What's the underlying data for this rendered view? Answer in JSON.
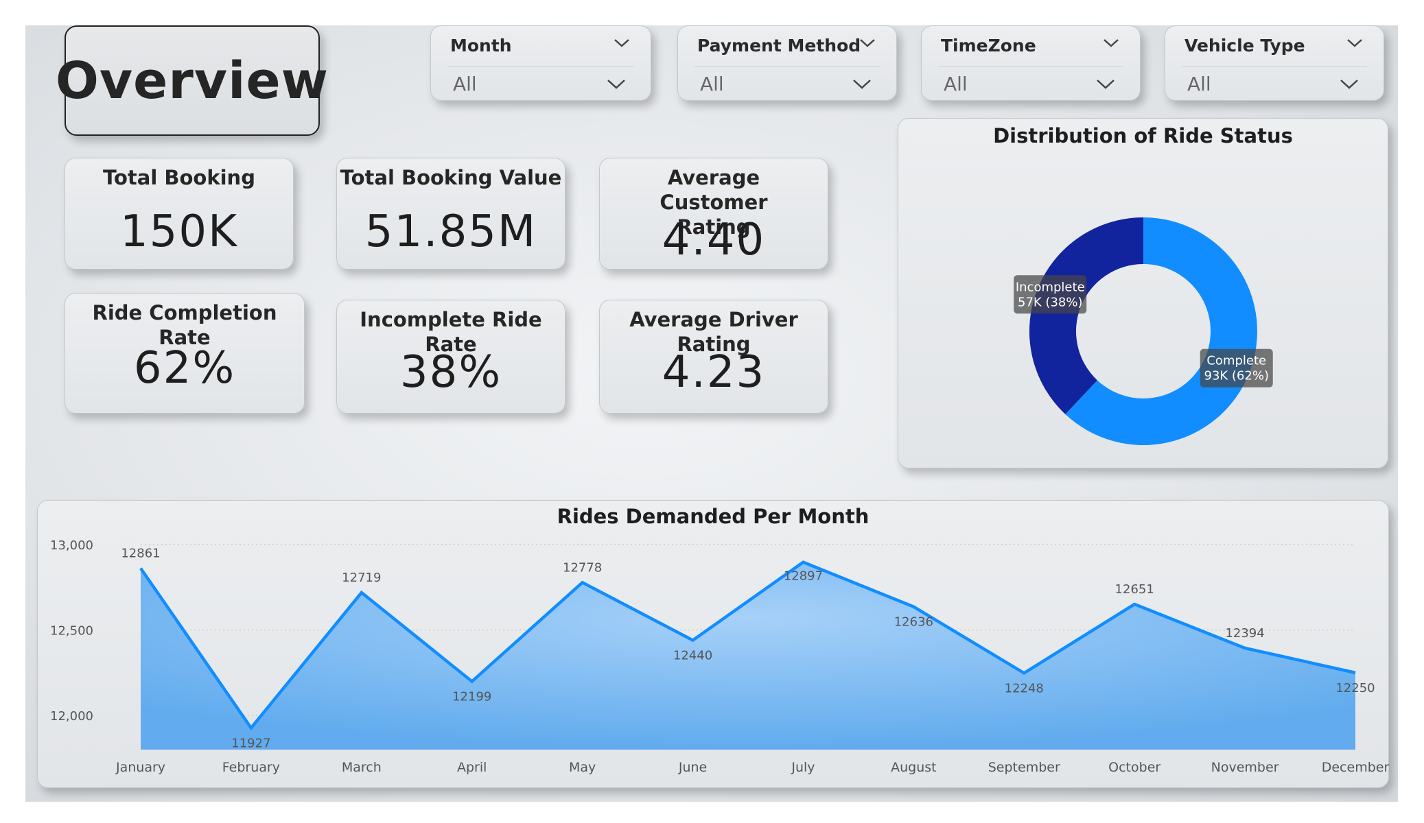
{
  "title": "Overview",
  "slicers": [
    {
      "label": "Month",
      "value": "All"
    },
    {
      "label": "Payment Method",
      "value": "All"
    },
    {
      "label": "TimeZone",
      "value": "All"
    },
    {
      "label": "Vehicle Type",
      "value": "All"
    }
  ],
  "kpis": {
    "total_booking": {
      "label": "Total Booking",
      "value": "150K"
    },
    "total_booking_value": {
      "label": "Total Booking Value",
      "value": "51.85M"
    },
    "avg_customer_rating": {
      "label": "Average Customer Rating",
      "value": "4.40"
    },
    "ride_completion_rate": {
      "label": "Ride Completion Rate",
      "value": "62%"
    },
    "incomplete_ride_rate": {
      "label": "Incomplete Ride Rate",
      "value": "38%"
    },
    "avg_driver_rating": {
      "label": "Average Driver Rating",
      "value": "4.23"
    }
  },
  "chart_data": [
    {
      "type": "pie",
      "title": "Distribution of Ride Status",
      "donut": true,
      "slices": [
        {
          "name": "Complete",
          "value": 93,
          "label_line1": "Complete",
          "label_line2": "93K (62%)",
          "color": "#118dff"
        },
        {
          "name": "Incomplete",
          "value": 57,
          "label_line1": "Incomplete",
          "label_line2": "57K (38%)",
          "color": "#12239e"
        }
      ]
    },
    {
      "type": "area",
      "title": "Rides Demanded Per Month",
      "categories": [
        "January",
        "February",
        "March",
        "April",
        "May",
        "June",
        "July",
        "August",
        "September",
        "October",
        "November",
        "December"
      ],
      "values": [
        12861,
        11927,
        12719,
        12199,
        12778,
        12440,
        12897,
        12636,
        12248,
        12651,
        12394,
        12250
      ],
      "data_labels": [
        "12861",
        "11927",
        "12719",
        "12199",
        "12778",
        "12440",
        "12897",
        "12636",
        "12248",
        "12651",
        "12394",
        "12250"
      ],
      "y_ticks": [
        {
          "value": 13000,
          "label": "13,000"
        },
        {
          "value": 12500,
          "label": "12,500"
        },
        {
          "value": 12000,
          "label": "12,000"
        }
      ],
      "ylim": [
        11800,
        13000
      ],
      "line_color": "#118dff",
      "fill_color": "#5aa8ee"
    }
  ]
}
